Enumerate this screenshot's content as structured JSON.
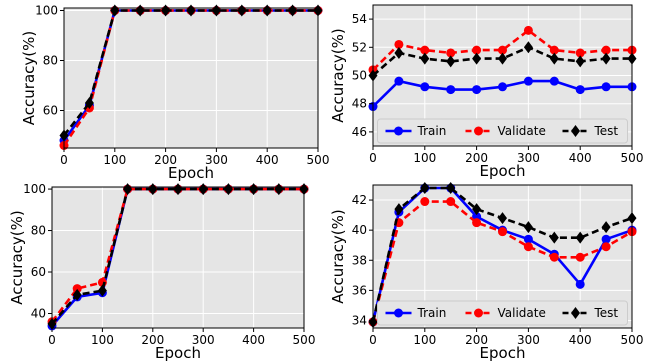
{
  "chart_data": [
    {
      "type": "line",
      "xlabel": "Epoch",
      "ylabel": "Accuracy(%)",
      "xlim": [
        0,
        500
      ],
      "ylim": [
        45,
        101
      ],
      "xticks": [
        0,
        100,
        200,
        300,
        400,
        500
      ],
      "yticks": [
        60,
        80,
        100
      ],
      "grid": true,
      "legend": null,
      "x": [
        0,
        50,
        100,
        150,
        200,
        250,
        300,
        350,
        400,
        450,
        500
      ],
      "series": [
        {
          "key": "train",
          "color": "#0000ff",
          "line_style": "solid",
          "marker": "circle",
          "values": [
            48,
            62,
            100,
            100,
            100,
            100,
            100,
            100,
            100,
            100,
            100
          ]
        },
        {
          "key": "validate",
          "color": "#ff0000",
          "line_style": "dashed",
          "marker": "circle",
          "values": [
            46,
            61,
            100,
            100,
            100,
            100,
            100,
            100,
            100,
            100,
            100
          ]
        },
        {
          "key": "test",
          "color": "#000000",
          "line_style": "dashed",
          "marker": "diamond",
          "values": [
            50,
            63,
            100,
            100,
            100,
            100,
            100,
            100,
            100,
            100,
            100
          ]
        }
      ]
    },
    {
      "type": "line",
      "xlabel": "Epoch",
      "ylabel": "Accuracy(%)",
      "xlim": [
        0,
        500
      ],
      "ylim": [
        45,
        55
      ],
      "xticks": [
        0,
        100,
        200,
        300,
        400,
        500
      ],
      "yticks": [
        46,
        48,
        50,
        52,
        54
      ],
      "grid": true,
      "legend": "lower-center",
      "x": [
        0,
        50,
        100,
        150,
        200,
        250,
        300,
        350,
        400,
        450,
        500
      ],
      "series": [
        {
          "key": "train",
          "name": "Train",
          "color": "#0000ff",
          "line_style": "solid",
          "marker": "circle",
          "values": [
            47.8,
            49.6,
            49.2,
            49.0,
            49.0,
            49.2,
            49.6,
            49.6,
            49.0,
            49.2,
            49.2
          ]
        },
        {
          "key": "validate",
          "name": "Validate",
          "color": "#ff0000",
          "line_style": "dashed",
          "marker": "circle",
          "values": [
            50.4,
            52.2,
            51.8,
            51.6,
            51.8,
            51.8,
            53.2,
            51.8,
            51.6,
            51.8,
            51.8
          ]
        },
        {
          "key": "test",
          "name": "Test",
          "color": "#000000",
          "line_style": "dashed",
          "marker": "diamond",
          "values": [
            50.0,
            51.6,
            51.2,
            51.0,
            51.2,
            51.2,
            52.0,
            51.2,
            51.0,
            51.2,
            51.2
          ]
        }
      ]
    },
    {
      "type": "line",
      "xlabel": "Epoch",
      "ylabel": "Accuracy(%)",
      "xlim": [
        0,
        500
      ],
      "ylim": [
        33,
        101
      ],
      "xticks": [
        0,
        100,
        200,
        300,
        400,
        500
      ],
      "yticks": [
        40,
        60,
        80,
        100
      ],
      "grid": true,
      "legend": null,
      "x": [
        0,
        50,
        100,
        150,
        200,
        250,
        300,
        350,
        400,
        450,
        500
      ],
      "series": [
        {
          "key": "train",
          "color": "#0000ff",
          "line_style": "solid",
          "marker": "circle",
          "values": [
            34,
            48,
            50,
            100,
            100,
            100,
            100,
            100,
            100,
            100,
            100
          ]
        },
        {
          "key": "validate",
          "color": "#ff0000",
          "line_style": "dashed",
          "marker": "circle",
          "values": [
            36,
            52,
            55,
            100,
            100,
            100,
            100,
            100,
            100,
            100,
            100
          ]
        },
        {
          "key": "test",
          "color": "#000000",
          "line_style": "dashed",
          "marker": "diamond",
          "values": [
            35,
            49,
            51,
            100,
            100,
            100,
            100,
            100,
            100,
            100,
            100
          ]
        }
      ]
    },
    {
      "type": "line",
      "xlabel": "Epoch",
      "ylabel": "Accuracy(%)",
      "xlim": [
        0,
        500
      ],
      "ylim": [
        33.5,
        43.0
      ],
      "xticks": [
        0,
        100,
        200,
        300,
        400,
        500
      ],
      "yticks": [
        34,
        36,
        38,
        40,
        42
      ],
      "grid": true,
      "legend": "lower-center",
      "x": [
        0,
        50,
        100,
        150,
        200,
        250,
        300,
        350,
        400,
        450,
        500
      ],
      "series": [
        {
          "key": "train",
          "name": "Train",
          "color": "#0000ff",
          "line_style": "solid",
          "marker": "circle",
          "values": [
            33.9,
            41.2,
            42.8,
            42.8,
            40.9,
            40.0,
            39.4,
            38.4,
            36.4,
            39.4,
            40.0
          ]
        },
        {
          "key": "validate",
          "name": "Validate",
          "color": "#ff0000",
          "line_style": "dashed",
          "marker": "circle",
          "values": [
            33.9,
            40.5,
            41.9,
            41.9,
            40.5,
            39.9,
            38.9,
            38.2,
            38.2,
            38.9,
            39.9
          ]
        },
        {
          "key": "test",
          "name": "Test",
          "color": "#000000",
          "line_style": "dashed",
          "marker": "diamond",
          "values": [
            33.9,
            41.4,
            42.8,
            42.8,
            41.4,
            40.8,
            40.2,
            39.5,
            39.5,
            40.2,
            40.8
          ]
        }
      ]
    }
  ]
}
